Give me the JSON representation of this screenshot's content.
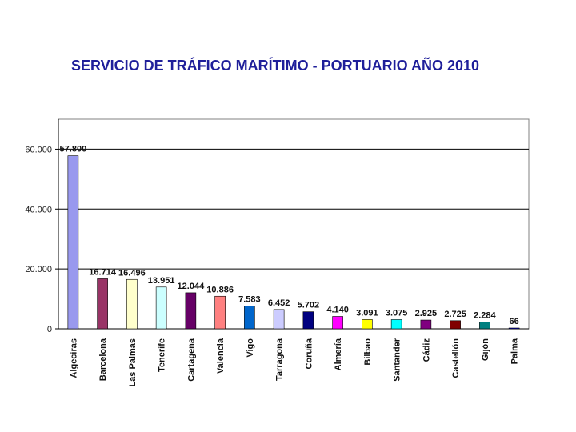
{
  "slide": {
    "title": "SERVICIO DE TRÁFICO MARÍTIMO - PORTUARIO AÑO 2010"
  },
  "chart_data": {
    "type": "bar",
    "title": "",
    "xlabel": "",
    "ylabel": "",
    "ylim": [
      0,
      70000
    ],
    "y_ticks": [
      0,
      20000,
      40000,
      60000
    ],
    "y_tick_labels": [
      "0",
      "20.000",
      "40.000",
      "60.000"
    ],
    "grid": true,
    "legend": "none",
    "categories": [
      "Algeciras",
      "Barcelona",
      "Las Palmas",
      "Tenerife",
      "Cartagena",
      "Valencia",
      "Vigo",
      "Tarragona",
      "Coruña",
      "Almería",
      "Bilbao",
      "Santander",
      "Cádiz",
      "Castellón",
      "Gijón",
      "Palma"
    ],
    "values": [
      57800,
      16714,
      16496,
      13951,
      12044,
      10886,
      7583,
      6452,
      5702,
      4140,
      3091,
      3075,
      2925,
      2725,
      2284,
      66
    ],
    "value_labels": [
      "57.800",
      "16.714",
      "16.496",
      "13.951",
      "12.044",
      "10.886",
      "7.583",
      "6.452",
      "5.702",
      "4.140",
      "3.091",
      "3.075",
      "2.925",
      "2.725",
      "2.284",
      "66"
    ],
    "colors": [
      "#9999ee",
      "#993366",
      "#ffffcc",
      "#ccffff",
      "#660066",
      "#ff8080",
      "#0066cc",
      "#ccccff",
      "#000080",
      "#ff00ff",
      "#ffff00",
      "#00ffff",
      "#800080",
      "#800000",
      "#008080",
      "#0000ff"
    ]
  }
}
